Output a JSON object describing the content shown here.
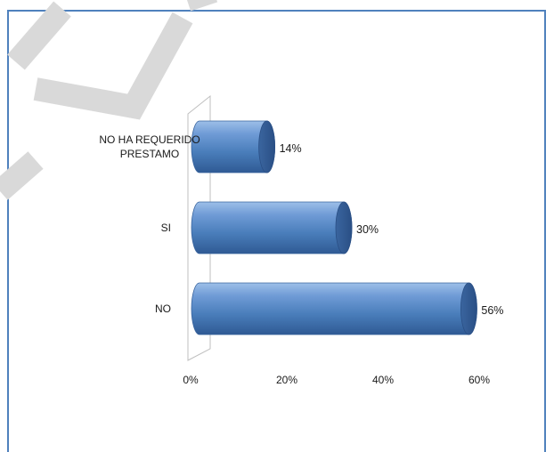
{
  "chart_data": {
    "type": "bar",
    "orientation": "horizontal",
    "style": "3d-cylinder",
    "categories": [
      [
        "NO HA REQUERIDO",
        "PRESTAMO"
      ],
      [
        "SI"
      ],
      [
        "NO"
      ]
    ],
    "values": [
      14,
      30,
      56
    ],
    "data_labels": [
      "14%",
      "30%",
      "56%"
    ],
    "xlim": [
      0,
      60
    ],
    "xticks": [
      0,
      20,
      40,
      60
    ],
    "xtick_labels": [
      "0%",
      "20%",
      "40%",
      "60%"
    ],
    "title": "",
    "xlabel": "",
    "ylabel": "",
    "grid": false,
    "legend": "none",
    "bar_color": "#4a7ebb"
  },
  "colors": {
    "frame_border": "#4f81bd",
    "bar_light": "#8db3e2",
    "bar_mid": "#4f81bd",
    "bar_dark": "#2a4f85",
    "watermark": "#d9d9d9"
  }
}
